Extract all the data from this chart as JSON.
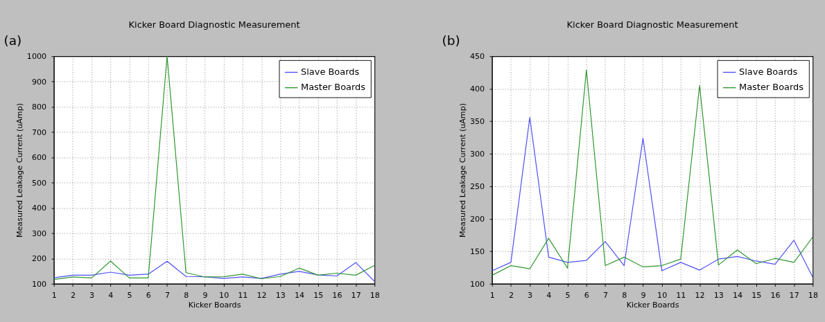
{
  "chart_data": [
    {
      "type": "line",
      "title": "Kicker Board Diagnostic Measurement",
      "xlabel": "Kicker Boards",
      "ylabel": "Measured Leakage Current  (uAmp)",
      "annotations": [
        "(a)"
      ],
      "x": [
        1,
        2,
        3,
        4,
        5,
        6,
        7,
        8,
        9,
        10,
        11,
        12,
        13,
        14,
        15,
        16,
        17,
        18
      ],
      "xlim": [
        1,
        18
      ],
      "xticks": [
        1,
        2,
        3,
        4,
        5,
        6,
        7,
        8,
        9,
        10,
        11,
        12,
        13,
        14,
        15,
        16,
        17,
        18
      ],
      "ylim": [
        100,
        1000
      ],
      "yticks": [
        100,
        200,
        300,
        400,
        500,
        600,
        700,
        800,
        900,
        1000
      ],
      "grid": true,
      "legend": "top right",
      "series": [
        {
          "name": "Slave Boards",
          "color": "#4f4ffa",
          "values": [
            124,
            134,
            134,
            146,
            134,
            138,
            189,
            129,
            128,
            121,
            127,
            121,
            138,
            149,
            135,
            131,
            184,
            109
          ]
        },
        {
          "name": "Master Boards",
          "color": "#2f962f",
          "values": [
            117,
            127,
            123,
            190,
            123,
            123,
            1000,
            144,
            127,
            128,
            138,
            120,
            129,
            162,
            134,
            142,
            134,
            173
          ]
        }
      ]
    },
    {
      "type": "line",
      "title": "Kicker Board Diagnostic Measurement",
      "xlabel": "Kicker Boards",
      "ylabel": "Measured Leakage Current  (uAmp)",
      "annotations": [
        "(b)"
      ],
      "x": [
        1,
        2,
        3,
        4,
        5,
        6,
        7,
        8,
        9,
        10,
        11,
        12,
        13,
        14,
        15,
        16,
        17,
        18
      ],
      "xlim": [
        1,
        18
      ],
      "xticks": [
        1,
        2,
        3,
        4,
        5,
        6,
        7,
        8,
        9,
        10,
        11,
        12,
        13,
        14,
        15,
        16,
        17,
        18
      ],
      "ylim": [
        100,
        450
      ],
      "yticks": [
        100,
        150,
        200,
        250,
        300,
        350,
        400,
        450
      ],
      "grid": true,
      "legend": "top right",
      "series": [
        {
          "name": "Slave Boards",
          "color": "#4f4ffa",
          "values": [
            120,
            133,
            356,
            141,
            133,
            136,
            165,
            128,
            324,
            120,
            133,
            121,
            138,
            142,
            135,
            130,
            167,
            110
          ]
        },
        {
          "name": "Master Boards",
          "color": "#2f962f",
          "values": [
            113,
            128,
            123,
            170,
            124,
            429,
            128,
            141,
            126,
            128,
            138,
            405,
            129,
            152,
            131,
            139,
            133,
            172
          ]
        }
      ]
    }
  ]
}
